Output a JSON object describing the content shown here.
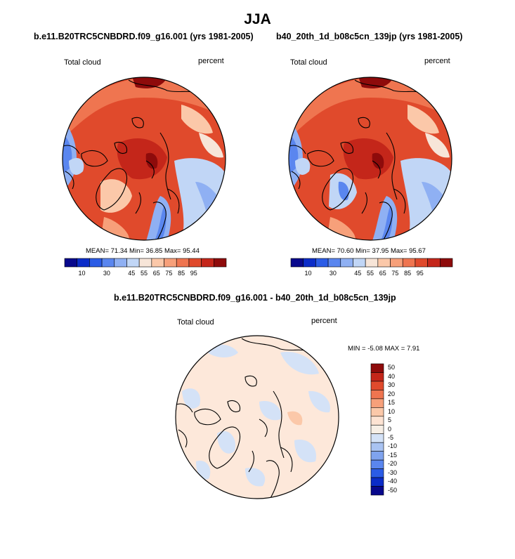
{
  "season": "JJA",
  "panels": [
    {
      "title": "b.e11.B20TRC5CNBDRD.f09_g16.001 (yrs 1981-2005)",
      "variable": "Total cloud",
      "units": "percent",
      "stats": "MEAN=  71.34  Min=  36.85  Max=  95.44"
    },
    {
      "title": "b40_20th_1d_b08c5cn_139jp (yrs 1981-2005)",
      "variable": "Total cloud",
      "units": "percent",
      "stats": "MEAN=  70.60  Min=  37.95  Max=  95.67"
    }
  ],
  "difference": {
    "title": "b.e11.B20TRC5CNBDRD.f09_g16.001 - b40_20th_1d_b08c5cn_139jp",
    "variable": "Total cloud",
    "units": "percent",
    "stats": "MIN =  -5.08 MAX =   7.91"
  },
  "colorbar_field": {
    "ticks": [
      "10",
      "30",
      "45",
      "55",
      "65",
      "75",
      "85",
      "95"
    ],
    "colors": [
      "#08088c",
      "#0b2cc8",
      "#2b5ce6",
      "#5a86ef",
      "#8fb0f3",
      "#c1d6f6",
      "#f7e5d8",
      "#fbc8a9",
      "#f7a07a",
      "#ef7550",
      "#e04a2c",
      "#c4261a",
      "#8e0b0b"
    ]
  },
  "colorbar_diff": {
    "ticks": [
      "50",
      "40",
      "30",
      "20",
      "15",
      "10",
      "5",
      "0",
      "-5",
      "-10",
      "-15",
      "-20",
      "-30",
      "-40",
      "-50"
    ],
    "colors": [
      "#8e0b0b",
      "#c4261a",
      "#e04a2c",
      "#ef7550",
      "#f7a07a",
      "#fbc8a9",
      "#fde3d3",
      "#f7efe6",
      "#d4e2f7",
      "#a9c3f2",
      "#7fa3ee",
      "#5a86ef",
      "#2b5ce6",
      "#0b2cc8",
      "#08088c"
    ]
  }
}
